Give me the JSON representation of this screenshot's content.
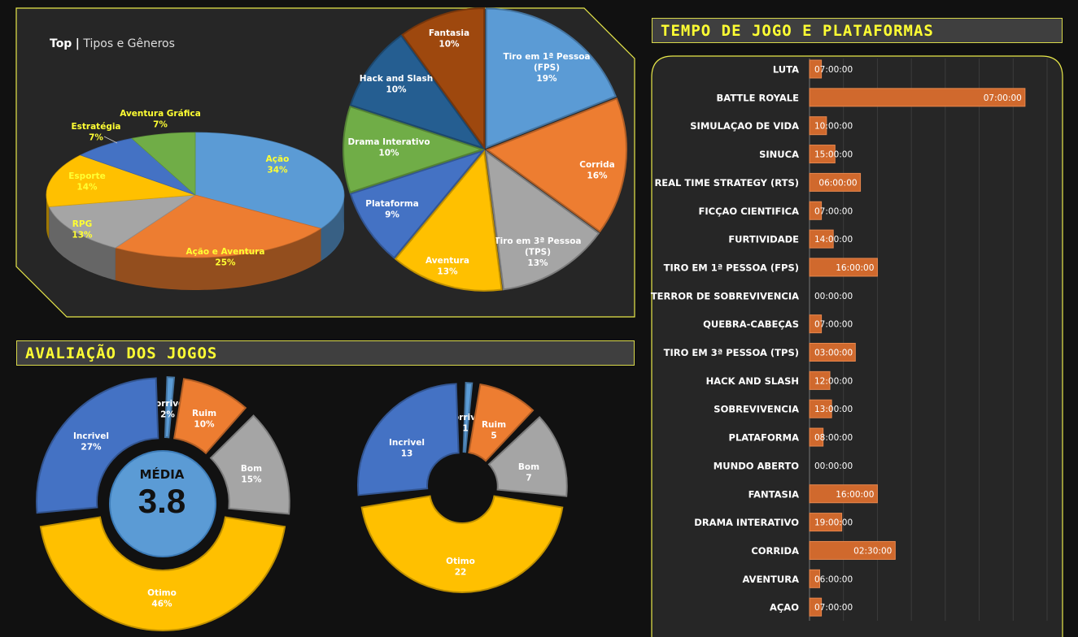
{
  "top_panel": {
    "title_bold": "Top",
    "title_sep": "|",
    "title_rest": "Tipos e Gêneros"
  },
  "ratings_header": "AVALIAÇÃO DOS JOGOS",
  "time_header": "TEMPO DE JOGO E PLATAFORMAS",
  "media": {
    "label": "MÉDIA",
    "value": "3.8"
  },
  "colors": {
    "blue": "#5b9bd5",
    "orange": "#ed7d31",
    "gray": "#a5a5a5",
    "yellow": "#ffc000",
    "darkblue": "#4472c4",
    "green": "#70ad47",
    "navy": "#255e91",
    "brown": "#9e480e",
    "bar": "#d0692d",
    "accent": "#ffff33"
  },
  "chart_data": [
    {
      "type": "pie",
      "id": "tipos",
      "slices": [
        {
          "label": "Ação",
          "value": 34,
          "pct": "34%",
          "color": "#5b9bd5"
        },
        {
          "label": "Ação e Aventura",
          "value": 25,
          "pct": "25%",
          "color": "#ed7d31"
        },
        {
          "label": "RPG",
          "value": 13,
          "pct": "13%",
          "color": "#a5a5a5"
        },
        {
          "label": "Esporte",
          "value": 14,
          "pct": "14%",
          "color": "#ffc000"
        },
        {
          "label": "Estratégia",
          "value": 7,
          "pct": "7%",
          "color": "#4472c4"
        },
        {
          "label": "Aventura Gráfica",
          "value": 7,
          "pct": "7%",
          "color": "#70ad47"
        }
      ]
    },
    {
      "type": "pie",
      "id": "generos",
      "slices": [
        {
          "label": "Tiro em 1ª Pessoa (FPS)",
          "value": 19,
          "pct": "19%",
          "color": "#5b9bd5"
        },
        {
          "label": "Corrida",
          "value": 16,
          "pct": "16%",
          "color": "#ed7d31"
        },
        {
          "label": "Tiro em 3ª Pessoa (TPS)",
          "value": 13,
          "pct": "13%",
          "color": "#a5a5a5"
        },
        {
          "label": "Aventura",
          "value": 13,
          "pct": "13%",
          "color": "#ffc000"
        },
        {
          "label": "Plataforma",
          "value": 9,
          "pct": "9%",
          "color": "#4472c4"
        },
        {
          "label": "Drama Interativo",
          "value": 10,
          "pct": "10%",
          "color": "#70ad47"
        },
        {
          "label": "Hack and Slash",
          "value": 10,
          "pct": "10%",
          "color": "#255e91"
        },
        {
          "label": "Fantasia",
          "value": 10,
          "pct": "10%",
          "color": "#9e480e"
        }
      ]
    },
    {
      "type": "pie",
      "id": "avaliacao_pct",
      "slices": [
        {
          "label": "Horrivel",
          "value": 2,
          "pct": "2%",
          "color": "#5b9bd5"
        },
        {
          "label": "Ruim",
          "value": 10,
          "pct": "10%",
          "color": "#ed7d31"
        },
        {
          "label": "Bom",
          "value": 15,
          "pct": "15%",
          "color": "#a5a5a5"
        },
        {
          "label": "Otimo",
          "value": 46,
          "pct": "46%",
          "color": "#ffc000"
        },
        {
          "label": "Incrivel",
          "value": 27,
          "pct": "27%",
          "color": "#4472c4"
        }
      ]
    },
    {
      "type": "pie",
      "id": "avaliacao_qtd",
      "slices": [
        {
          "label": "Horrivel",
          "value": 1,
          "pct": "1",
          "color": "#5b9bd5"
        },
        {
          "label": "Ruim",
          "value": 5,
          "pct": "5",
          "color": "#ed7d31"
        },
        {
          "label": "Bom",
          "value": 7,
          "pct": "7",
          "color": "#a5a5a5"
        },
        {
          "label": "Otimo",
          "value": 22,
          "pct": "22",
          "color": "#ffc000"
        },
        {
          "label": "Incrivel",
          "value": 13,
          "pct": "13",
          "color": "#4472c4"
        }
      ]
    },
    {
      "type": "bar",
      "id": "tempo",
      "orientation": "horizontal",
      "categories": [
        "LUTA",
        "BATTLE ROYALE",
        "SIMULAÇAO DE VIDA",
        "SINUCA",
        "REAL TIME STRATEGY (RTS)",
        "FICÇAO CIENTIFICA",
        "FURTIVIDADE",
        "TIRO EM 1ª PESSOA (FPS)",
        "TERROR DE SOBREVIVENCIA",
        "QUEBRA-CABEÇAS",
        "TIRO EM 3ª PESSOA (TPS)",
        "HACK AND SLASH",
        "SOBREVIVENCIA",
        "PLATAFORMA",
        "MUNDO ABERTO",
        "FANTASIA",
        "DRAMA INTERATIVO",
        "CORRIDA",
        "AVENTURA",
        "AÇAO"
      ],
      "values_hours": [
        7,
        127,
        10,
        15,
        30,
        7,
        14,
        40,
        0,
        7,
        27,
        12,
        13,
        8,
        0,
        40,
        19,
        50.5,
        6,
        7
      ],
      "labels": [
        "07:00:00",
        "07:00:00",
        "10:00:00",
        "15:00:00",
        "06:00:00",
        "07:00:00",
        "14:00:00",
        "16:00:00",
        "00:00:00",
        "07:00:00",
        "03:00:00",
        "12:00:00",
        "13:00:00",
        "08:00:00",
        "00:00:00",
        "16:00:00",
        "19:00:00",
        "02:30:00",
        "06:00:00",
        "07:00:00"
      ],
      "xlim": [
        0,
        140
      ],
      "grid": true
    }
  ]
}
